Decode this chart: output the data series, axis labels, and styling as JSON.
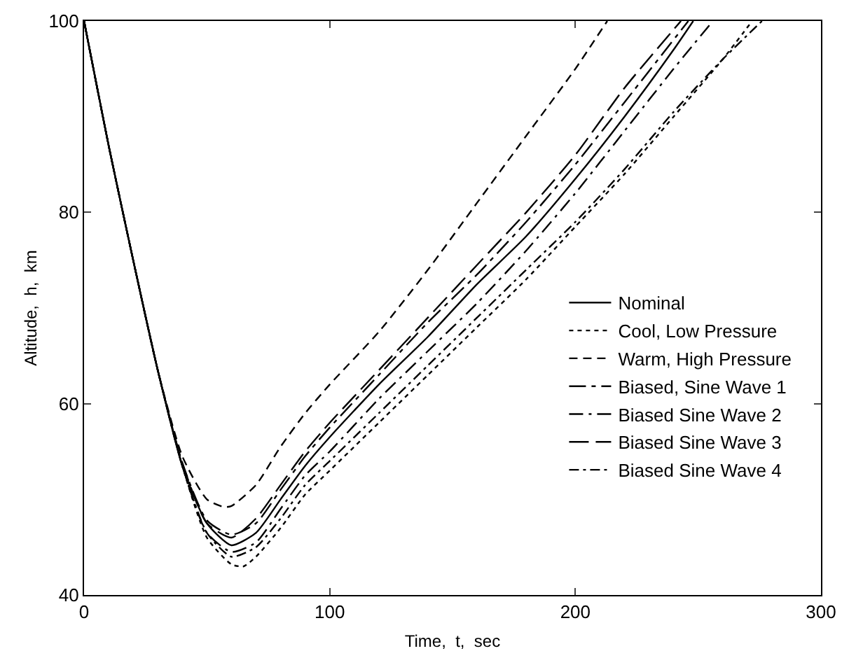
{
  "chart_data": {
    "type": "line",
    "xlabel": "Time,  t,  sec",
    "ylabel": "Altitude,  h,  km",
    "xlim": [
      0,
      300
    ],
    "ylim": [
      40,
      100
    ],
    "xticks": [
      0,
      100,
      200,
      300
    ],
    "yticks": [
      40,
      60,
      80,
      100
    ],
    "grid": false,
    "legend": "bottom right",
    "marker": "none",
    "series": [
      {
        "name": "Nominal",
        "color": "#000000",
        "line_style": "solid",
        "x": [
          0,
          10,
          20,
          30,
          40,
          50,
          60,
          70,
          80,
          90,
          100,
          120,
          140,
          160,
          180,
          200,
          220,
          240,
          248
        ],
        "values": [
          100,
          87,
          75,
          63.5,
          53.5,
          47.5,
          45.2,
          46.5,
          50,
          53.5,
          56.5,
          62,
          67,
          72.5,
          77.5,
          83.5,
          90,
          97,
          100
        ]
      },
      {
        "name": "Cool, Low Pressure",
        "color": "#000000",
        "line_style": "dotted",
        "x": [
          0,
          10,
          20,
          30,
          40,
          50,
          60,
          65,
          70,
          80,
          90,
          100,
          120,
          140,
          160,
          180,
          200,
          220,
          240,
          260,
          272
        ],
        "values": [
          100,
          87,
          75,
          63.5,
          53.5,
          46,
          43.2,
          43,
          44,
          47,
          50.5,
          53,
          58,
          63,
          68,
          73,
          78.5,
          84,
          90,
          96,
          100
        ]
      },
      {
        "name": "Warm, High Pressure",
        "color": "#000000",
        "line_style": "dashed",
        "x": [
          0,
          10,
          20,
          30,
          40,
          50,
          57,
          60,
          70,
          80,
          90,
          100,
          120,
          140,
          160,
          180,
          200,
          213
        ],
        "values": [
          100,
          87,
          75,
          63.5,
          54.5,
          50,
          49.2,
          49.3,
          51.5,
          55.5,
          59,
          62,
          67.5,
          74,
          81,
          88,
          95,
          100
        ]
      },
      {
        "name": "Biased, Sine Wave 1",
        "color": "#000000",
        "line_style": "dashed",
        "x": [
          0,
          10,
          20,
          30,
          40,
          50,
          60,
          70,
          80,
          90,
          100,
          120,
          140,
          160,
          180,
          200,
          220,
          246
        ],
        "values": [
          100,
          87,
          75,
          63.5,
          53.8,
          47.8,
          46.3,
          47.5,
          51,
          54.5,
          57.5,
          63,
          68.5,
          73.5,
          79,
          85,
          91.5,
          100
        ]
      },
      {
        "name": "Biased Sine Wave 2",
        "color": "#000000",
        "line_style": "dashed",
        "x": [
          0,
          10,
          20,
          30,
          40,
          50,
          60,
          70,
          80,
          90,
          100,
          120,
          140,
          160,
          180,
          200,
          220,
          240,
          256
        ],
        "values": [
          100,
          87,
          75,
          63.5,
          53.5,
          46.5,
          44.5,
          45.5,
          49,
          52.5,
          55,
          60.5,
          65.5,
          70.5,
          76,
          82,
          88.5,
          95,
          100
        ]
      },
      {
        "name": "Biased Sine Wave 3",
        "color": "#000000",
        "line_style": "dashed",
        "x": [
          0,
          10,
          20,
          30,
          40,
          50,
          60,
          70,
          80,
          90,
          100,
          120,
          140,
          160,
          180,
          200,
          220,
          243
        ],
        "values": [
          100,
          87,
          75,
          63.5,
          53.8,
          47.5,
          46,
          48,
          51.5,
          55,
          58,
          63.5,
          69,
          74.5,
          80,
          86,
          93,
          100
        ]
      },
      {
        "name": "Biased Sine Wave 4",
        "color": "#000000",
        "line_style": "dashed",
        "x": [
          0,
          10,
          20,
          30,
          40,
          50,
          60,
          70,
          80,
          90,
          100,
          120,
          140,
          160,
          180,
          200,
          220,
          240,
          260,
          276
        ],
        "values": [
          100,
          87,
          75,
          63.5,
          53.5,
          46.5,
          44,
          45,
          48,
          51.5,
          54,
          59,
          64,
          69,
          74,
          79,
          84.5,
          90.5,
          96,
          100
        ]
      }
    ]
  }
}
